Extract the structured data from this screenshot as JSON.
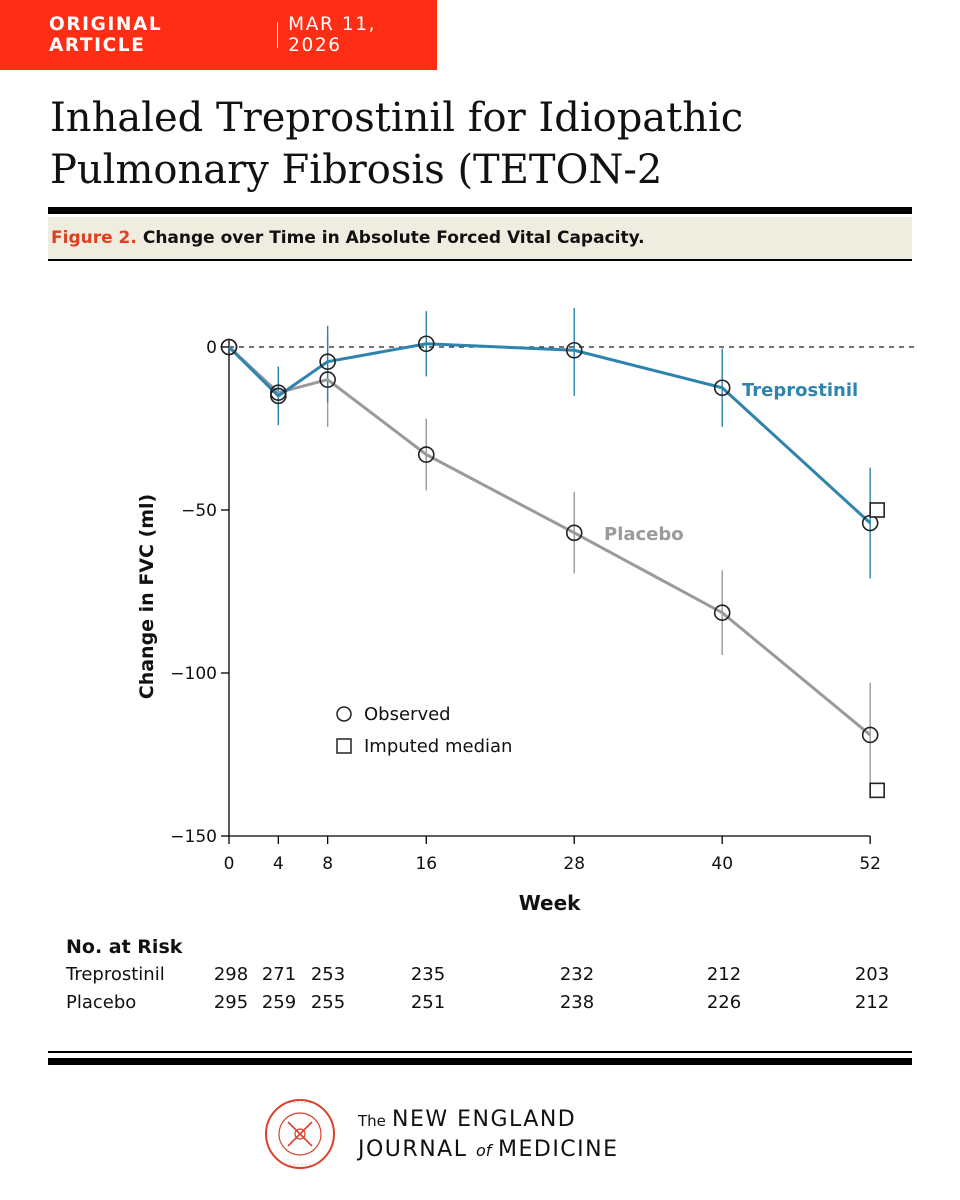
{
  "header": {
    "article_type": "ORIGINAL ARTICLE",
    "date": "MAR 11, 2026",
    "title": "Inhaled Treprostinil for Idiopathic Pulmonary Fibrosis (TETON-2"
  },
  "figure": {
    "number": "Figure 2.",
    "caption": "Change over Time in Absolute Forced Vital Capacity."
  },
  "chart_data": {
    "type": "line",
    "ylabel": "Change in FVC (ml)",
    "xlabel": "Week",
    "x": [
      0,
      4,
      8,
      16,
      28,
      40,
      52
    ],
    "x_tick_labels": [
      "0",
      "4",
      "8",
      "16",
      "28",
      "40",
      "52"
    ],
    "ylim": [
      -150,
      0
    ],
    "y_ticks": [
      0,
      -50,
      -100,
      -150
    ],
    "y_tick_labels": [
      "0",
      "−50",
      "−100",
      "−150"
    ],
    "reference_line": 0,
    "series": [
      {
        "name": "Treprostinil",
        "color": "#2e84ad",
        "values": [
          0,
          -15,
          -4.5,
          1,
          -1,
          -12.5,
          -54
        ],
        "ci_low": [
          0,
          -24,
          -17,
          -9,
          -15,
          -24.5,
          -71
        ],
        "ci_high": [
          0,
          -6,
          6.5,
          11,
          12,
          -0.5,
          -37
        ],
        "imputed_median_week52": -50
      },
      {
        "name": "Placebo",
        "color": "#9a9a9a",
        "values": [
          0,
          -14,
          -10,
          -33,
          -57,
          -81.5,
          -119
        ],
        "ci_low": [
          0,
          -22,
          -24.5,
          -44,
          -69.5,
          -94.5,
          -135
        ],
        "ci_high": [
          0,
          -6,
          4.5,
          -22,
          -44.5,
          -68.5,
          -103
        ],
        "imputed_median_week52": -136
      }
    ],
    "legend": {
      "observed": "Observed",
      "imputed": "Imputed median",
      "position": "lower-left"
    },
    "risk_table": {
      "title": "No. at Risk",
      "rows": [
        {
          "label": "Treprostinil",
          "values": [
            "298",
            "271",
            "253",
            "235",
            "232",
            "212",
            "203"
          ]
        },
        {
          "label": "Placebo",
          "values": [
            "295",
            "259",
            "255",
            "251",
            "238",
            "226",
            "212"
          ]
        }
      ]
    }
  },
  "footer": {
    "the": "The",
    "line1": "NEW ENGLAND",
    "journal": "JOURNAL",
    "of": "of",
    "medicine": "MEDICINE",
    "seal_text": "THE NEW ENGLAND JOURNAL OF MEDICINE 1812 2026"
  }
}
